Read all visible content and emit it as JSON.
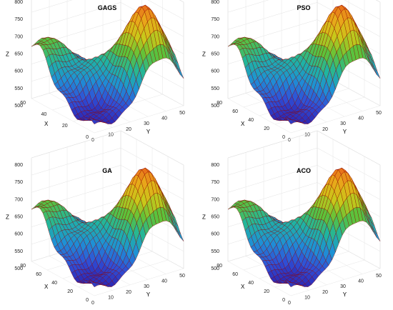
{
  "figure": {
    "background": "#ffffff",
    "colormap": [
      "#2b1aa8",
      "#2f4fd6",
      "#1e90d6",
      "#1fb5a0",
      "#5cc23a",
      "#c8c81a",
      "#e8a81a",
      "#e85a1a"
    ],
    "wire_color": "#8b0000"
  },
  "chart_data": [
    {
      "type": "surface",
      "title": "GAGS",
      "xlabel": "X",
      "ylabel": "Y",
      "zlabel": "Z",
      "xlim": [
        0,
        60
      ],
      "ylim": [
        0,
        50
      ],
      "zlim": [
        500,
        800
      ],
      "xticks": [
        "0",
        "20",
        "40",
        "60"
      ],
      "yticks": [
        "0",
        "10",
        "20",
        "30",
        "40",
        "50"
      ],
      "zticks": [
        "500",
        "550",
        "600",
        "650",
        "700",
        "750",
        "800"
      ],
      "grid": true,
      "wire_overlay": true
    },
    {
      "type": "surface",
      "title": "PSO",
      "xlabel": "X",
      "ylabel": "Y",
      "zlabel": "Z",
      "xlim": [
        0,
        80
      ],
      "ylim": [
        0,
        50
      ],
      "zlim": [
        500,
        800
      ],
      "xticks": [
        "0",
        "20",
        "40",
        "60",
        "80"
      ],
      "yticks": [
        "0",
        "10",
        "20",
        "30",
        "40",
        "50"
      ],
      "zticks": [
        "500",
        "550",
        "600",
        "650",
        "700",
        "750",
        "800"
      ],
      "grid": true,
      "wire_overlay": true
    },
    {
      "type": "surface",
      "title": "GA",
      "xlabel": "X",
      "ylabel": "Y",
      "zlabel": "Z",
      "xlim": [
        0,
        80
      ],
      "ylim": [
        0,
        50
      ],
      "zlim": [
        500,
        800
      ],
      "xticks": [
        "0",
        "20",
        "40",
        "60",
        "80"
      ],
      "yticks": [
        "0",
        "10",
        "20",
        "30",
        "40",
        "50"
      ],
      "zticks": [
        "500",
        "550",
        "600",
        "650",
        "700",
        "750",
        "800"
      ],
      "grid": true,
      "wire_overlay": true
    },
    {
      "type": "surface",
      "title": "ACO",
      "xlabel": "X",
      "ylabel": "Y",
      "zlabel": "Z",
      "xlim": [
        0,
        80
      ],
      "ylim": [
        0,
        50
      ],
      "zlim": [
        500,
        800
      ],
      "xticks": [
        "0",
        "20",
        "40",
        "60",
        "80"
      ],
      "yticks": [
        "0",
        "10",
        "20",
        "30",
        "40",
        "50"
      ],
      "zticks": [
        "500",
        "550",
        "600",
        "650",
        "700",
        "750",
        "800"
      ],
      "grid": true,
      "wire_overlay": true
    }
  ]
}
